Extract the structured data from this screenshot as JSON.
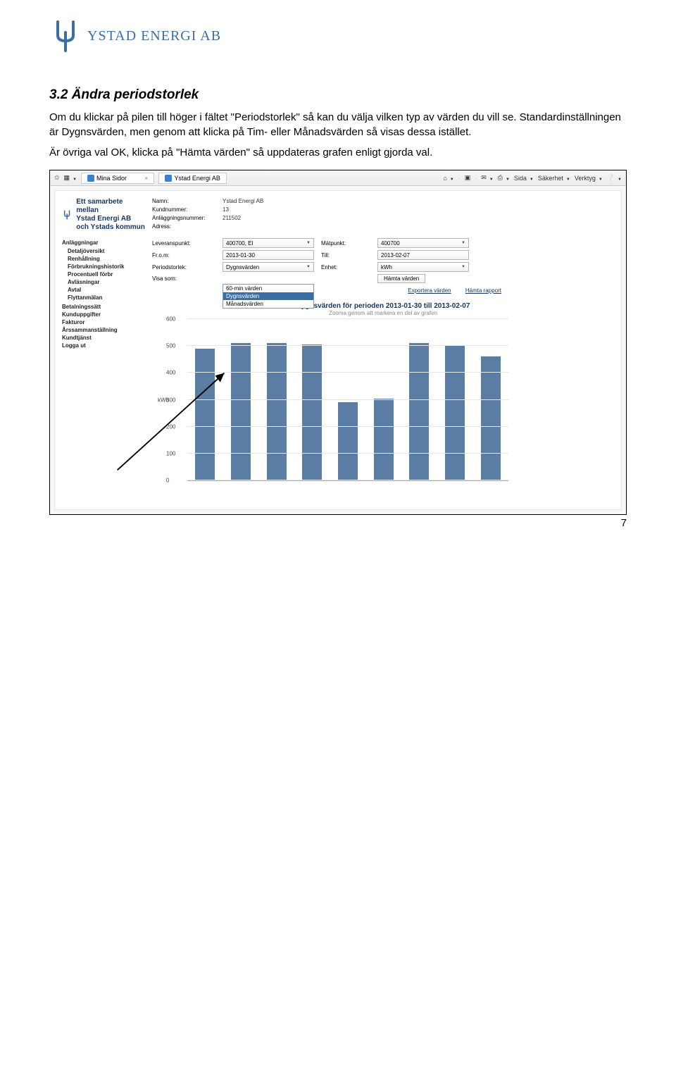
{
  "logo": {
    "text": "YSTAD ENERGI AB"
  },
  "section": {
    "title": "3.2 Ändra periodstorlek",
    "p1": "Om du klickar på pilen till höger i fältet \"Periodstorlek\" så kan du välja vilken typ av värden du vill se. Standardinställningen är Dygnsvärden, men genom att klicka på Tim- eller Månadsvärden så visas dessa istället.",
    "p2": "Är övriga val OK, klicka på \"Hämta värden\" så uppdateras grafen enligt gjorda val."
  },
  "ie": {
    "tab1": "Mina Sidor",
    "tab2": "Ystad Energi AB",
    "right": [
      "Sida",
      "Säkerhet",
      "Verktyg"
    ]
  },
  "header": {
    "line1": "Ett samarbete mellan",
    "line2": "Ystad Energi AB och Ystads kommun"
  },
  "nav": {
    "top1": "Anläggningar",
    "subs": [
      "Detaljöversikt",
      "Renhållning",
      "Förbrukningshistorik",
      "Procentuell förbr",
      "Avläsningar",
      "Avtal",
      "Flyttanmälan"
    ],
    "rest": [
      "Betalningssätt",
      "Kunduppgifter",
      "Fakturor",
      "Årssammanställning",
      "Kundtjänst",
      "Logga ut"
    ]
  },
  "form": {
    "name_label": "Namn:",
    "name_val": "Ystad Energi AB",
    "kund_label": "Kundnummer:",
    "kund_val": "13",
    "anl_label": "Anläggningsnummer:",
    "anl_val": "211502",
    "adr_label": "Adress:",
    "lev_label": "Leveranspunkt:",
    "lev_val": "400700, El",
    "mat_label": "Mätpunkt:",
    "mat_val": "400700",
    "from_label": "Fr.o.m:",
    "from_val": "2013-01-30",
    "till_label": "Till:",
    "till_val": "2013-02-07",
    "period_label": "Periodstorlek:",
    "period_val": "Dygnsvärden",
    "enhet_label": "Enhet:",
    "enhet_val": "kWh",
    "visa_label": "Visa som:",
    "dd_opt1": "60-min värden",
    "dd_opt2": "Dygnsvärden",
    "dd_opt3": "Månadsvärden"
  },
  "links": {
    "export": "Exportera värden",
    "report": "Hämta rapport",
    "fetch_btn": "Hämta värden"
  },
  "chart": {
    "title": "Dygnsvärden för perioden 2013-01-30 till 2013-02-07",
    "sub": "Zooma genom att markera en del av grafen",
    "ylabel": "kWh",
    "ymax": 600,
    "ytick_step": 100,
    "values": [
      490,
      510,
      510,
      505,
      290,
      305,
      510,
      500,
      460
    ],
    "bar_color": "#5b7ca3",
    "grid_color": "#e6e6e6"
  },
  "page_number": "7"
}
